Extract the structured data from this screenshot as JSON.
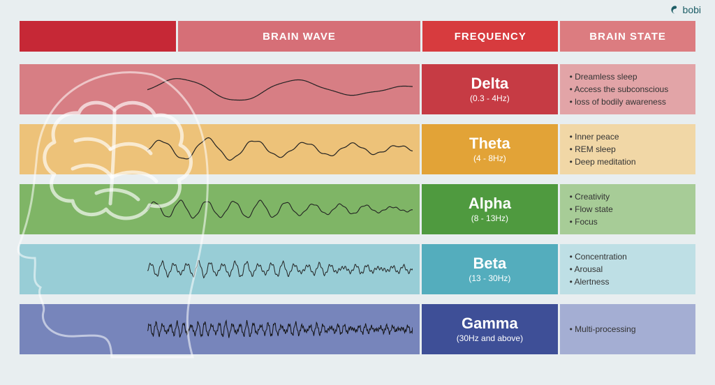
{
  "logo": {
    "text": "bobi"
  },
  "background_color": "#e8eef0",
  "layout": {
    "col_wave_width": 575,
    "col_freq_width": 195,
    "col_state_width": 195,
    "header_spacer_width": 225,
    "header_wave_width": 350
  },
  "header": {
    "wave_label": "BRAIN WAVE",
    "freq_label": "FREQUENCY",
    "state_label": "BRAIN STATE",
    "spacer_bg": "#c62836",
    "wave_bg": "#d66f77",
    "freq_bg": "#d73b3e",
    "state_bg": "#dc7c80",
    "text_color": "#ffffff",
    "fontsize": 15
  },
  "rows": [
    {
      "name": "Delta",
      "range": "(0.3 - 4Hz)",
      "wave_bg": "#d77e84",
      "freq_bg": "#c63b44",
      "state_bg": "#e2a4a7",
      "text_color": "#ffffff",
      "states": [
        "Dreamless sleep",
        "Access the subconscious",
        "loss of bodily awareness"
      ],
      "wave": {
        "freq": 2.2,
        "amp": 16,
        "noise": 0.05,
        "stroke": "#222",
        "width": 1.2
      }
    },
    {
      "name": "Theta",
      "range": "(4 - 8Hz)",
      "wave_bg": "#edc279",
      "freq_bg": "#e2a337",
      "state_bg": "#f1d7a6",
      "text_color": "#ffffff",
      "states": [
        "Inner peace",
        "REM sleep",
        "Deep meditation"
      ],
      "wave": {
        "freq": 5.5,
        "amp": 14,
        "noise": 0.1,
        "stroke": "#222",
        "width": 1.2
      }
    },
    {
      "name": "Alpha",
      "range": "(8 - 13Hz)",
      "wave_bg": "#7fb566",
      "freq_bg": "#4f9a3f",
      "state_bg": "#a7cc97",
      "text_color": "#ffffff",
      "states": [
        "Creativity",
        "Flow state",
        "Focus"
      ],
      "wave": {
        "freq": 10,
        "amp": 12,
        "noise": 0.08,
        "stroke": "#222",
        "width": 1.1
      }
    },
    {
      "name": "Beta",
      "range": "(13 - 30Hz)",
      "wave_bg": "#98cdd6",
      "freq_bg": "#54adbd",
      "state_bg": "#bedfe5",
      "text_color": "#ffffff",
      "states": [
        "Concentration",
        "Arousal",
        "Alertness"
      ],
      "wave": {
        "freq": 22,
        "amp": 9,
        "noise": 0.25,
        "stroke": "#222",
        "width": 1
      }
    },
    {
      "name": "Gamma",
      "range": "(30Hz and above)",
      "wave_bg": "#7785bb",
      "freq_bg": "#3e4f97",
      "state_bg": "#a4aed3",
      "text_color": "#ffffff",
      "states": [
        "Multi-processing"
      ],
      "wave": {
        "freq": 38,
        "amp": 8,
        "noise": 0.35,
        "stroke": "#111",
        "width": 1
      }
    }
  ],
  "brain": {
    "head_stroke": "rgba(255,255,255,0.55)",
    "brain_stroke": "rgba(255,255,255,0.65)"
  }
}
